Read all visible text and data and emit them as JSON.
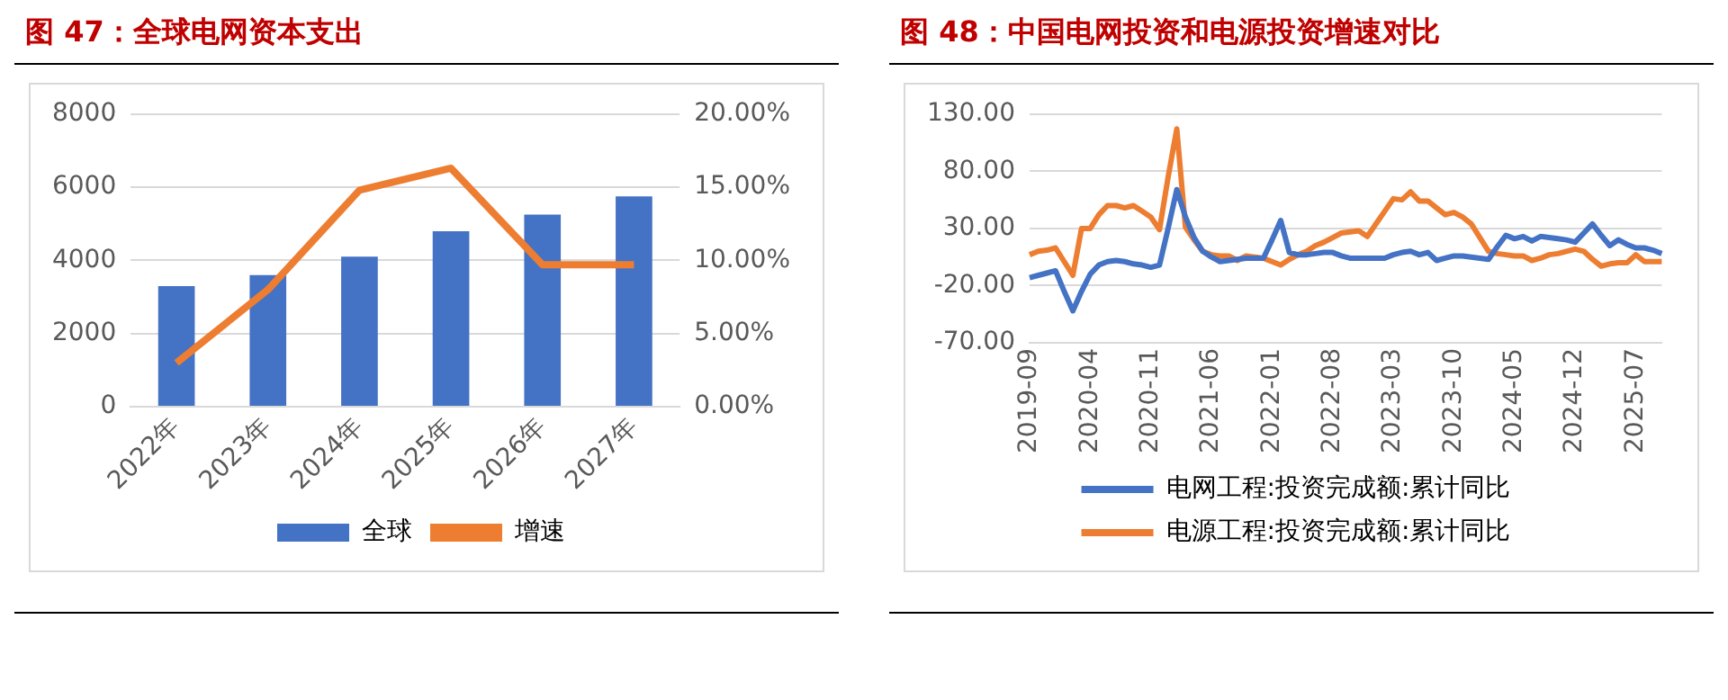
{
  "chart_data": [
    {
      "type": "bar",
      "title": "图 47：全球电网资本支出",
      "categories": [
        "2022年",
        "2023年",
        "2024年",
        "2025年",
        "2026年",
        "2027年"
      ],
      "series": [
        {
          "name": "全球",
          "color": "#4472c4",
          "values": [
            3300,
            3600,
            4100,
            4800,
            5250,
            5750
          ]
        },
        {
          "name": "增速",
          "type": "line",
          "axis": "y2",
          "color": "#ed7d31",
          "values": [
            3.0,
            8.0,
            14.8,
            16.3,
            9.7,
            9.7
          ]
        }
      ],
      "ylim": [
        0,
        8000
      ],
      "yticks": [
        0,
        2000,
        4000,
        6000,
        8000
      ],
      "y2lim": [
        0,
        20
      ],
      "y2ticks": [
        {
          "value": 0,
          "label": "0.00%"
        },
        {
          "value": 5,
          "label": "5.00%"
        },
        {
          "value": 10,
          "label": "10.00%"
        },
        {
          "value": 15,
          "label": "15.00%"
        },
        {
          "value": 20,
          "label": "20.00%"
        }
      ],
      "grid": "y",
      "legend": "bottom",
      "marker": "none"
    },
    {
      "type": "line",
      "title": "图 48：中国电网投资和电源投资增速对比",
      "categories": [
        "2019-09",
        null,
        null,
        null,
        null,
        null,
        null,
        "2020-04",
        null,
        null,
        null,
        null,
        null,
        null,
        "2020-11",
        null,
        null,
        null,
        null,
        null,
        null,
        "2021-06",
        null,
        null,
        null,
        null,
        null,
        null,
        "2022-01",
        null,
        null,
        null,
        null,
        null,
        null,
        "2022-08",
        null,
        null,
        null,
        null,
        null,
        null,
        "2023-03",
        null,
        null,
        null,
        null,
        null,
        null,
        "2023-10",
        null,
        null,
        null,
        null,
        null,
        null,
        "2024-05",
        null,
        null,
        null,
        null,
        null,
        null,
        "2024-12",
        null,
        null,
        null,
        null,
        null,
        null,
        "2025-07",
        null,
        null,
        null
      ],
      "series": [
        {
          "name": "电网工程:投资完成额:累计同比",
          "color": "#4472c4",
          "values": [
            -13,
            -11,
            -9,
            -7,
            -25,
            -42,
            -25,
            -10,
            -2,
            1,
            2,
            1,
            -1,
            -2,
            -4,
            -2,
            30,
            64,
            40,
            22,
            10,
            5,
            1,
            2,
            3,
            4,
            4,
            4,
            20,
            37,
            9,
            7,
            7,
            8,
            9,
            9,
            6,
            4,
            4,
            4,
            4,
            4,
            7,
            9,
            10,
            7,
            9,
            2,
            4,
            6,
            6,
            5,
            4,
            3,
            14,
            24,
            21,
            23,
            19,
            23,
            22,
            21,
            20,
            18,
            26,
            34,
            24,
            15,
            20,
            16,
            13,
            13,
            11,
            8
          ]
        },
        {
          "name": "电源工程:投资完成额:累计同比",
          "color": "#ed7d31",
          "values": [
            7,
            10,
            11,
            13,
            1,
            -11,
            30,
            30,
            42,
            50,
            50,
            48,
            50,
            45,
            40,
            29,
            75,
            117,
            31,
            20,
            10,
            7,
            6,
            6,
            2,
            6,
            5,
            4,
            1,
            -2,
            3,
            7,
            10,
            15,
            18,
            22,
            26,
            27,
            28,
            23,
            34,
            45,
            56,
            55,
            62,
            54,
            54,
            48,
            42,
            44,
            40,
            34,
            22,
            10,
            8,
            7,
            6,
            6,
            2,
            4,
            7,
            8,
            10,
            12,
            10,
            3,
            -3,
            -1,
            0,
            0,
            7,
            1,
            1,
            1
          ]
        }
      ],
      "ylim": [
        -70,
        130
      ],
      "yticks": [
        {
          "value": -70,
          "label": "-70.00"
        },
        {
          "value": -20,
          "label": "-20.00"
        },
        {
          "value": 30,
          "label": "30.00"
        },
        {
          "value": 80,
          "label": "80.00"
        },
        {
          "value": 130,
          "label": "130.00"
        }
      ],
      "grid": "y",
      "legend": "bottom",
      "marker": "none"
    }
  ]
}
